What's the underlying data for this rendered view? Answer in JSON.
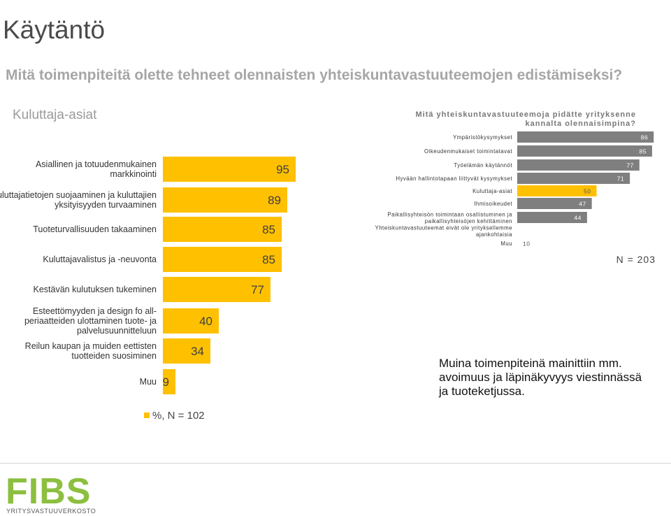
{
  "page_title": "Käytäntö",
  "question": "Mitä toimenpiteitä olette tehneet olennaisten yhteiskuntavastuuteemojen edistämiseksi?",
  "colors": {
    "left_bar": "#ffc000",
    "right_bar": "#7f7f7f",
    "right_bar_highlight": "#ffc000",
    "right_bar_muu": "#ffffff"
  },
  "logo": {
    "text": "FIBS",
    "subtitle": "YRITYSVASTUUVERKOSTO"
  },
  "left_section": {
    "heading": "Kuluttaja-asiat",
    "n_label": "%, N = 102"
  },
  "right_section": {
    "heading": "Mitä yhteiskuntavastuuteemoja pidätte yrityksenne kannalta olennaisimpina?",
    "n_label": "N = 203"
  },
  "other_note": {
    "lines": [
      "Muina toimenpiteinä mainittiin mm.",
      "avoimuus ja läpinäkyvyys viestinnässä",
      "ja tuoteketjussa."
    ]
  },
  "chart_data": [
    {
      "type": "bar",
      "orientation": "horizontal",
      "title": "Kuluttaja-asiat",
      "categories": [
        [
          "Asiallinen ja totuudenmukainen",
          "markkinointi"
        ],
        [
          "Kuluttajatietojen suojaaminen ja kuluttajien",
          "yksityisyyden turvaaminen"
        ],
        [
          "Tuoteturvallisuuden takaaminen"
        ],
        [
          "Kuluttajavalistus ja -neuvonta"
        ],
        [
          "Kestävän kulutuksen tukeminen"
        ],
        [
          "Esteettömyyden ja design fo all-",
          "periaatteiden ulottaminen tuote- ja",
          "palvelusuunnitteluun"
        ],
        [
          "Reilun kaupan ja muiden eettisten",
          "tuotteiden suosiminen"
        ],
        [
          "Muu"
        ]
      ],
      "values": [
        95,
        89,
        85,
        85,
        77,
        40,
        34,
        9
      ],
      "legend": "%, N = 102"
    },
    {
      "type": "bar",
      "orientation": "horizontal",
      "title": "Mitä yhteiskuntavastuuteemoja pidätte yrityksenne kannalta olennaisimpina?",
      "categories": [
        [
          "Ympäristökysymykset"
        ],
        [
          "Oikeudenmukaiset toimintatavat"
        ],
        [
          "Työelämän käytännöt"
        ],
        [
          "Hyvään hallintotapaan liittyvät kysymykset"
        ],
        [
          "Kuluttaja-asiat"
        ],
        [
          "Ihmisoikeudet"
        ],
        [
          "Paikallisyhteisön toimintaan osallistuminen ja",
          "paikallisyhteisöjen kehittäminen"
        ],
        [
          "Yhteiskuntavastuuteemat eivät ole yrityksellemme",
          "ajankohtaisia"
        ],
        [
          "Muu"
        ]
      ],
      "values": [
        86,
        85,
        77,
        71,
        50,
        47,
        44,
        null,
        10
      ],
      "highlight": "Kuluttaja-asiat",
      "n": "N = 203"
    }
  ]
}
